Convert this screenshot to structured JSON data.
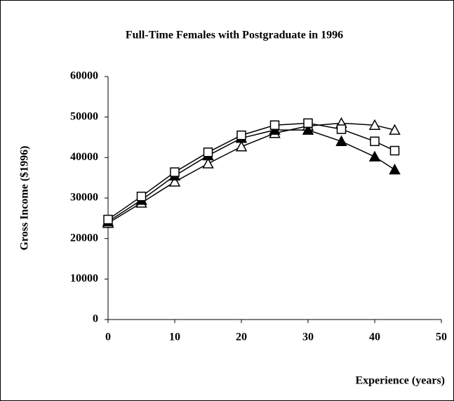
{
  "chart_data": {
    "type": "line",
    "title": "Full-Time Females with Postgraduate in 1996",
    "x_label": "Experience (years)",
    "y_label": "Gross Income ($1996)",
    "xlim": [
      0,
      50
    ],
    "xticks": [
      0,
      10,
      20,
      30,
      40,
      50
    ],
    "ylim": [
      0,
      60000
    ],
    "yticks": [
      0,
      10000,
      20000,
      30000,
      40000,
      50000,
      60000
    ],
    "grid": false,
    "x": [
      0,
      5,
      10,
      15,
      20,
      25,
      30,
      35,
      40,
      43
    ],
    "series": [
      {
        "color": "#000000",
        "marker": "triangle-open",
        "values": [
          23800,
          28800,
          34000,
          38500,
          42700,
          46000,
          47800,
          48500,
          48000,
          46800
        ]
      },
      {
        "color": "#000000",
        "marker": "triangle-filled",
        "values": [
          24200,
          29500,
          35500,
          40500,
          44800,
          46800,
          46800,
          44000,
          40200,
          37000
        ]
      },
      {
        "color": "#000000",
        "marker": "square-open",
        "values": [
          24700,
          30400,
          36400,
          41300,
          45500,
          48000,
          48500,
          47000,
          44000,
          41700
        ]
      }
    ]
  }
}
